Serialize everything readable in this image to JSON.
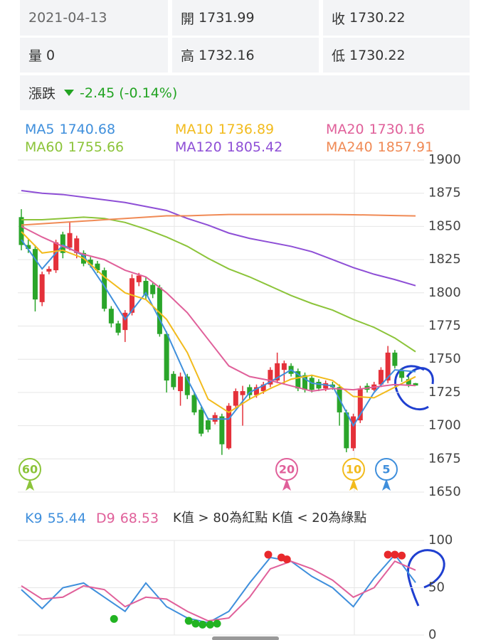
{
  "header": {
    "date": "2021-04-13",
    "open": {
      "label": "開",
      "value": "1731.99"
    },
    "close": {
      "label": "收",
      "value": "1730.22"
    },
    "volume": {
      "label": "量",
      "value": "0"
    },
    "high": {
      "label": "高",
      "value": "1732.16"
    },
    "low": {
      "label": "低",
      "value": "1730.22"
    },
    "change": {
      "label": "漲跌",
      "value": "-2.45 (-0.14%)"
    }
  },
  "chart_data": [
    {
      "type": "candlestick",
      "ylim": [
        1650,
        1900
      ],
      "yticks": [
        1650,
        1675,
        1700,
        1725,
        1750,
        1775,
        1800,
        1825,
        1850,
        1875,
        1900
      ],
      "grid": true,
      "up_color": "#e4313a",
      "down_color": "#2aa52a",
      "candles": [
        {
          "open": 1857,
          "high": 1863,
          "low": 1832,
          "close": 1836
        },
        {
          "open": 1836,
          "high": 1840,
          "low": 1830,
          "close": 1833
        },
        {
          "open": 1833,
          "high": 1836,
          "low": 1786,
          "close": 1795
        },
        {
          "open": 1793,
          "high": 1816,
          "low": 1790,
          "close": 1814
        },
        {
          "open": 1816,
          "high": 1820,
          "low": 1814,
          "close": 1818
        },
        {
          "open": 1817,
          "high": 1840,
          "low": 1815,
          "close": 1838
        },
        {
          "open": 1844,
          "high": 1846,
          "low": 1826,
          "close": 1830
        },
        {
          "open": 1834,
          "high": 1853,
          "low": 1832,
          "close": 1845
        },
        {
          "open": 1830,
          "high": 1843,
          "low": 1826,
          "close": 1841
        },
        {
          "open": 1830,
          "high": 1832,
          "low": 1820,
          "close": 1822
        },
        {
          "open": 1825,
          "high": 1827,
          "low": 1819,
          "close": 1821
        },
        {
          "open": 1822,
          "high": 1824,
          "low": 1815,
          "close": 1817
        },
        {
          "open": 1817,
          "high": 1819,
          "low": 1786,
          "close": 1788
        },
        {
          "open": 1788,
          "high": 1790,
          "low": 1774,
          "close": 1777
        },
        {
          "open": 1777,
          "high": 1779,
          "low": 1768,
          "close": 1770
        },
        {
          "open": 1772,
          "high": 1787,
          "low": 1763,
          "close": 1785
        },
        {
          "open": 1785,
          "high": 1814,
          "low": 1783,
          "close": 1811
        },
        {
          "open": 1808,
          "high": 1815,
          "low": 1805,
          "close": 1813
        },
        {
          "open": 1809,
          "high": 1812,
          "low": 1795,
          "close": 1798
        },
        {
          "open": 1806,
          "high": 1808,
          "low": 1796,
          "close": 1799
        },
        {
          "open": 1804,
          "high": 1806,
          "low": 1767,
          "close": 1769
        },
        {
          "open": 1769,
          "high": 1771,
          "low": 1725,
          "close": 1734
        },
        {
          "open": 1739,
          "high": 1741,
          "low": 1727,
          "close": 1729
        },
        {
          "open": 1726,
          "high": 1740,
          "low": 1715,
          "close": 1737
        },
        {
          "open": 1737,
          "high": 1739,
          "low": 1720,
          "close": 1723
        },
        {
          "open": 1723,
          "high": 1725,
          "low": 1708,
          "close": 1710
        },
        {
          "open": 1712,
          "high": 1714,
          "low": 1692,
          "close": 1694
        },
        {
          "open": 1704,
          "high": 1706,
          "low": 1695,
          "close": 1697
        },
        {
          "open": 1703,
          "high": 1710,
          "low": 1701,
          "close": 1708
        },
        {
          "open": 1707,
          "high": 1709,
          "low": 1678,
          "close": 1686
        },
        {
          "open": 1683,
          "high": 1717,
          "low": 1682,
          "close": 1715
        },
        {
          "open": 1715,
          "high": 1728,
          "low": 1713,
          "close": 1726
        },
        {
          "open": 1723,
          "high": 1730,
          "low": 1700,
          "close": 1726
        },
        {
          "open": 1729,
          "high": 1731,
          "low": 1720,
          "close": 1723
        },
        {
          "open": 1723,
          "high": 1731,
          "low": 1721,
          "close": 1729
        },
        {
          "open": 1726,
          "high": 1733,
          "low": 1724,
          "close": 1731
        },
        {
          "open": 1731,
          "high": 1744,
          "low": 1729,
          "close": 1742
        },
        {
          "open": 1734,
          "high": 1755,
          "low": 1732,
          "close": 1747
        },
        {
          "open": 1742,
          "high": 1749,
          "low": 1731,
          "close": 1747
        },
        {
          "open": 1745,
          "high": 1747,
          "low": 1737,
          "close": 1739
        },
        {
          "open": 1741,
          "high": 1743,
          "low": 1726,
          "close": 1728
        },
        {
          "open": 1738,
          "high": 1740,
          "low": 1725,
          "close": 1727
        },
        {
          "open": 1736,
          "high": 1738,
          "low": 1725,
          "close": 1727
        },
        {
          "open": 1733,
          "high": 1735,
          "low": 1726,
          "close": 1728
        },
        {
          "open": 1728,
          "high": 1734,
          "low": 1726,
          "close": 1732
        },
        {
          "open": 1731,
          "high": 1733,
          "low": 1727,
          "close": 1729
        },
        {
          "open": 1729,
          "high": 1731,
          "low": 1700,
          "close": 1710
        },
        {
          "open": 1710,
          "high": 1712,
          "low": 1680,
          "close": 1683
        },
        {
          "open": 1683,
          "high": 1709,
          "low": 1681,
          "close": 1707
        },
        {
          "open": 1704,
          "high": 1730,
          "low": 1702,
          "close": 1728
        },
        {
          "open": 1730,
          "high": 1732,
          "low": 1725,
          "close": 1727
        },
        {
          "open": 1727,
          "high": 1733,
          "low": 1726,
          "close": 1731
        },
        {
          "open": 1731,
          "high": 1744,
          "low": 1729,
          "close": 1742
        },
        {
          "open": 1734,
          "high": 1760,
          "low": 1732,
          "close": 1755
        },
        {
          "open": 1755,
          "high": 1757,
          "low": 1743,
          "close": 1745
        },
        {
          "open": 1741,
          "high": 1743,
          "low": 1733,
          "close": 1736
        },
        {
          "open": 1735,
          "high": 1737,
          "low": 1729,
          "close": 1731
        },
        {
          "open": 1731.99,
          "high": 1732.16,
          "low": 1730.22,
          "close": 1730.22
        }
      ],
      "x": [
        0,
        3,
        6,
        9,
        12,
        15,
        18,
        21,
        24,
        27,
        30,
        33,
        36,
        39,
        42,
        45,
        48,
        51,
        54,
        57
      ],
      "series": [
        {
          "name": "MA5",
          "color": "#3f8fdc",
          "values": [
            1840,
            1818,
            1836,
            1828,
            1805,
            1780,
            1800,
            1770,
            1735,
            1705,
            1705,
            1725,
            1733,
            1742,
            1732,
            1730,
            1700,
            1725,
            1742,
            1740.68
          ]
        },
        {
          "name": "MA10",
          "color": "#f2bb1d",
          "values": [
            1846,
            1830,
            1832,
            1826,
            1812,
            1800,
            1795,
            1780,
            1755,
            1720,
            1710,
            1720,
            1728,
            1735,
            1738,
            1734,
            1722,
            1721,
            1729,
            1736.89
          ]
        },
        {
          "name": "MA20",
          "color": "#e0609a",
          "values": [
            1850,
            1842,
            1835,
            1829,
            1825,
            1817,
            1812,
            1800,
            1785,
            1765,
            1745,
            1737,
            1734,
            1730,
            1726,
            1728,
            1727,
            1729,
            1731,
            1730.16
          ]
        },
        {
          "name": "MA60",
          "color": "#8cc43a",
          "values": [
            1855,
            1855,
            1856,
            1857,
            1856,
            1853,
            1848,
            1842,
            1835,
            1826,
            1818,
            1812,
            1805,
            1798,
            1792,
            1787,
            1780,
            1774,
            1766,
            1755.66
          ]
        },
        {
          "name": "MA120",
          "color": "#8e4fd6",
          "values": [
            1877,
            1875,
            1874,
            1872,
            1870,
            1868,
            1865,
            1862,
            1856,
            1851,
            1845,
            1841,
            1838,
            1835,
            1831,
            1825,
            1819,
            1814,
            1810,
            1805.42
          ]
        },
        {
          "name": "MA240",
          "color": "#f08a55",
          "values": [
            1851,
            1852,
            1853,
            1854,
            1855,
            1856,
            1857,
            1858,
            1858,
            1858.5,
            1859,
            1859,
            1859,
            1859,
            1859,
            1859,
            1858.8,
            1858.5,
            1858.2,
            1857.91
          ]
        }
      ],
      "badges": [
        {
          "label": "60",
          "color": "#8cc43a"
        },
        {
          "label": "20",
          "color": "#e0609a"
        },
        {
          "label": "10",
          "color": "#f2bb1d"
        },
        {
          "label": "5",
          "color": "#3f8fdc"
        }
      ]
    },
    {
      "type": "line",
      "ylim": [
        0,
        100
      ],
      "yticks": [
        0,
        50,
        100
      ],
      "grid": true,
      "note": "K值 > 80為紅點 K值 < 20為綠點",
      "x": [
        0,
        3,
        6,
        9,
        12,
        15,
        18,
        21,
        24,
        27,
        30,
        33,
        36,
        39,
        42,
        45,
        48,
        51,
        54,
        57
      ],
      "series": [
        {
          "name": "K9",
          "color": "#3f8fdc",
          "values": [
            48,
            28,
            50,
            55,
            40,
            25,
            55,
            30,
            18,
            13,
            25,
            55,
            82,
            78,
            62,
            50,
            30,
            60,
            85,
            55.44
          ]
        },
        {
          "name": "D9",
          "color": "#e0609a",
          "values": [
            52,
            38,
            40,
            52,
            48,
            30,
            40,
            38,
            25,
            15,
            18,
            40,
            70,
            78,
            70,
            58,
            40,
            50,
            78,
            68.53
          ]
        }
      ],
      "markers": [
        {
          "color": "#e8292c",
          "x": [
            35.7,
            37.6,
            38.4,
            53,
            54,
            55
          ],
          "values": [
            85,
            82,
            80,
            85,
            85,
            84
          ]
        },
        {
          "color": "#22b322",
          "x": [
            13.4,
            24.2,
            25.2,
            26.2,
            27.3,
            28.3
          ],
          "values": [
            17,
            15,
            12,
            11,
            11,
            12
          ]
        }
      ]
    }
  ]
}
